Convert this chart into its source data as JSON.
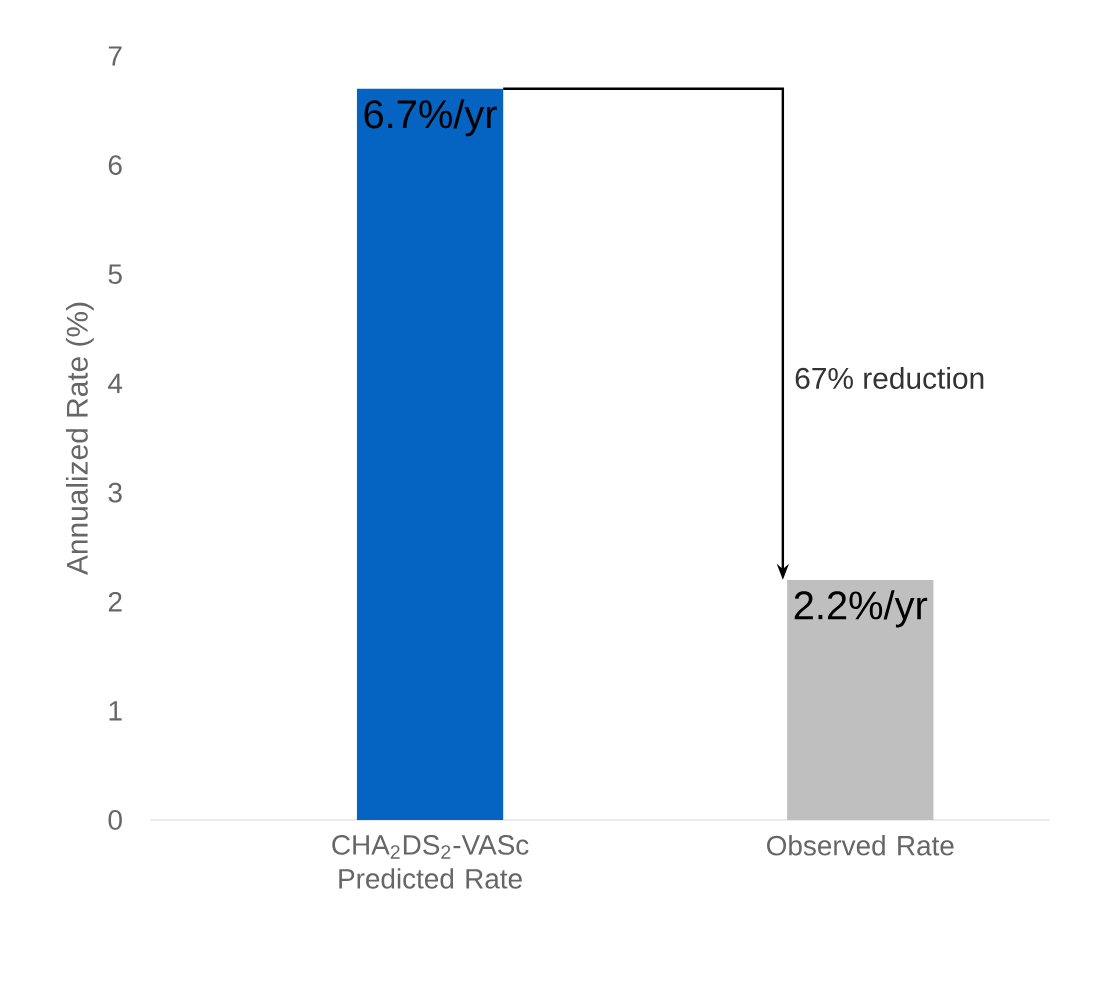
{
  "chart_data": {
    "type": "bar",
    "categories": [
      "CHA$_{2}$DS$_{2}$-VASc Predicted Rate",
      "Observed Rate"
    ],
    "values": [
      6.7,
      2.2
    ],
    "colors": [
      "#0563c1",
      "#bfbfbf"
    ],
    "value_labels": [
      "6.7%/yr",
      "2.2%/yr"
    ],
    "ylabel": "Annualized Rate (%)",
    "ylim": [
      0,
      7
    ],
    "yticks": [
      0,
      1,
      2,
      3,
      4,
      5,
      6,
      7
    ],
    "annotations": [
      "67% reduction"
    ]
  }
}
